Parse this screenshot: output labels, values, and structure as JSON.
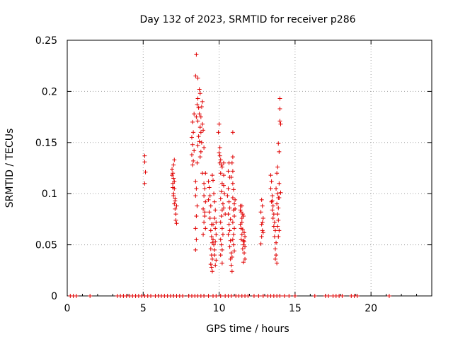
{
  "chart_data": {
    "type": "scatter",
    "title": "Day 132 of 2023, SRMTID for receiver p286",
    "xlabel": "GPS time / hours",
    "ylabel": "SRMTID / TECUs",
    "xlim": [
      0,
      24
    ],
    "ylim": [
      0,
      0.25
    ],
    "xticks": [
      0,
      5,
      10,
      15,
      20
    ],
    "xtick_labels": [
      "0",
      "5",
      "10",
      "15",
      "20"
    ],
    "yticks": [
      0,
      0.05,
      0.1,
      0.15,
      0.2,
      0.25
    ],
    "ytick_labels": [
      "0",
      "0.05",
      "0.1",
      "0.15",
      "0.2",
      "0.25"
    ],
    "grid": true,
    "legend": "none",
    "marker": "+",
    "color": "#e00000",
    "series": [
      {
        "name": "SRMTID",
        "points": [
          [
            0.2,
            0
          ],
          [
            0.4,
            0
          ],
          [
            0.6,
            0
          ],
          [
            1.5,
            0
          ],
          [
            3.3,
            0
          ],
          [
            3.5,
            0
          ],
          [
            3.7,
            0
          ],
          [
            3.9,
            0
          ],
          [
            4.1,
            0
          ],
          [
            4.3,
            0
          ],
          [
            4.5,
            0
          ],
          [
            4.7,
            0
          ],
          [
            4.9,
            0
          ],
          [
            5.1,
            0
          ],
          [
            5.3,
            0
          ],
          [
            5.5,
            0
          ],
          [
            5.8,
            0
          ],
          [
            6.0,
            0
          ],
          [
            6.2,
            0
          ],
          [
            6.4,
            0
          ],
          [
            6.6,
            0
          ],
          [
            6.8,
            0
          ],
          [
            7.0,
            0
          ],
          [
            7.2,
            0
          ],
          [
            7.4,
            0
          ],
          [
            7.6,
            0
          ],
          [
            8.0,
            0
          ],
          [
            8.2,
            0
          ],
          [
            8.4,
            0
          ],
          [
            8.6,
            0
          ],
          [
            8.8,
            0
          ],
          [
            9.0,
            0
          ],
          [
            9.3,
            0
          ],
          [
            9.6,
            0
          ],
          [
            9.8,
            0
          ],
          [
            10.1,
            0
          ],
          [
            10.4,
            0
          ],
          [
            10.6,
            0
          ],
          [
            10.8,
            0
          ],
          [
            11.1,
            0
          ],
          [
            11.3,
            0
          ],
          [
            11.5,
            0
          ],
          [
            11.7,
            0
          ],
          [
            11.9,
            0
          ],
          [
            12.3,
            0
          ],
          [
            12.6,
            0
          ],
          [
            12.9,
            0
          ],
          [
            13.2,
            0
          ],
          [
            13.4,
            0
          ],
          [
            13.6,
            0
          ],
          [
            13.8,
            0
          ],
          [
            14.0,
            0
          ],
          [
            14.3,
            0
          ],
          [
            14.6,
            0
          ],
          [
            15.0,
            0
          ],
          [
            16.3,
            0
          ],
          [
            17.0,
            0
          ],
          [
            17.2,
            0
          ],
          [
            17.5,
            0
          ],
          [
            17.7,
            0
          ],
          [
            17.9,
            0
          ],
          [
            18.1,
            0
          ],
          [
            18.7,
            0
          ],
          [
            18.9,
            0
          ],
          [
            19.1,
            0
          ],
          [
            21.2,
            0
          ],
          [
            5.1,
            0.137
          ],
          [
            5.1,
            0.131
          ],
          [
            5.15,
            0.121
          ],
          [
            5.1,
            0.11
          ],
          [
            6.9,
            0.124
          ],
          [
            6.95,
            0.12
          ],
          [
            7.0,
            0.115
          ],
          [
            6.95,
            0.11
          ],
          [
            7.05,
            0.105
          ],
          [
            7.0,
            0.1
          ],
          [
            7.1,
            0.095
          ],
          [
            7.05,
            0.09
          ],
          [
            7.1,
            0.085
          ],
          [
            7.15,
            0.08
          ],
          [
            7.0,
            0.128
          ],
          [
            7.05,
            0.133
          ],
          [
            6.9,
            0.118
          ],
          [
            7.0,
            0.098
          ],
          [
            7.1,
            0.093
          ],
          [
            7.2,
            0.088
          ],
          [
            7.15,
            0.074
          ],
          [
            7.2,
            0.071
          ],
          [
            6.95,
            0.106
          ],
          [
            7.05,
            0.112
          ],
          [
            8.5,
            0.236
          ],
          [
            8.45,
            0.215
          ],
          [
            8.6,
            0.213
          ],
          [
            8.6,
            0.193
          ],
          [
            8.7,
            0.202
          ],
          [
            8.75,
            0.198
          ],
          [
            8.55,
            0.187
          ],
          [
            8.65,
            0.184
          ],
          [
            8.7,
            0.178
          ],
          [
            8.5,
            0.175
          ],
          [
            8.6,
            0.171
          ],
          [
            8.75,
            0.165
          ],
          [
            8.8,
            0.16
          ],
          [
            8.65,
            0.156
          ],
          [
            8.7,
            0.151
          ],
          [
            8.6,
            0.147
          ],
          [
            8.8,
            0.141
          ],
          [
            8.75,
            0.136
          ],
          [
            8.55,
            0.13
          ],
          [
            8.25,
            0.17
          ],
          [
            8.3,
            0.16
          ],
          [
            8.2,
            0.155
          ],
          [
            8.25,
            0.148
          ],
          [
            8.35,
            0.142
          ],
          [
            8.2,
            0.138
          ],
          [
            8.3,
            0.132
          ],
          [
            8.25,
            0.128
          ],
          [
            8.35,
            0.178
          ],
          [
            8.45,
            0.112
          ],
          [
            8.5,
            0.105
          ],
          [
            8.45,
            0.098
          ],
          [
            8.55,
            0.088
          ],
          [
            8.5,
            0.078
          ],
          [
            8.45,
            0.066
          ],
          [
            8.5,
            0.055
          ],
          [
            8.45,
            0.045
          ],
          [
            8.9,
            0.19
          ],
          [
            8.85,
            0.185
          ],
          [
            8.8,
            0.175
          ],
          [
            8.9,
            0.168
          ],
          [
            8.95,
            0.162
          ],
          [
            8.85,
            0.15
          ],
          [
            9.0,
            0.145
          ],
          [
            8.9,
            0.12
          ],
          [
            9.0,
            0.11
          ],
          [
            9.05,
            0.105
          ],
          [
            9.1,
            0.12
          ],
          [
            9.0,
            0.098
          ],
          [
            9.1,
            0.092
          ],
          [
            8.95,
            0.085
          ],
          [
            9.05,
            0.078
          ],
          [
            9.0,
            0.072
          ],
          [
            9.1,
            0.066
          ],
          [
            8.95,
            0.06
          ],
          [
            9.05,
            0.082
          ],
          [
            9.3,
            0.112
          ],
          [
            9.35,
            0.106
          ],
          [
            9.4,
            0.098
          ],
          [
            9.3,
            0.094
          ],
          [
            9.45,
            0.088
          ],
          [
            9.35,
            0.082
          ],
          [
            9.4,
            0.076
          ],
          [
            9.5,
            0.07
          ],
          [
            9.45,
            0.064
          ],
          [
            9.5,
            0.058
          ],
          [
            9.55,
            0.052
          ],
          [
            9.45,
            0.046
          ],
          [
            9.5,
            0.04
          ],
          [
            9.55,
            0.036
          ],
          [
            9.45,
            0.031
          ],
          [
            9.5,
            0.028
          ],
          [
            9.55,
            0.024
          ],
          [
            9.6,
            0.055
          ],
          [
            9.65,
            0.05
          ],
          [
            9.7,
            0.045
          ],
          [
            9.6,
            0.07
          ],
          [
            9.55,
            0.118
          ],
          [
            9.6,
            0.113
          ],
          [
            9.65,
            0.1
          ],
          [
            9.7,
            0.092
          ],
          [
            9.75,
            0.084
          ],
          [
            9.7,
            0.076
          ],
          [
            9.8,
            0.072
          ],
          [
            9.75,
            0.066
          ],
          [
            9.8,
            0.06
          ],
          [
            9.75,
            0.053
          ],
          [
            9.7,
            0.04
          ],
          [
            9.8,
            0.035
          ],
          [
            9.75,
            0.03
          ],
          [
            10.0,
            0.168
          ],
          [
            9.95,
            0.16
          ],
          [
            10.05,
            0.145
          ],
          [
            10.0,
            0.14
          ],
          [
            10.1,
            0.133
          ],
          [
            10.05,
            0.13
          ],
          [
            10.15,
            0.128
          ],
          [
            10.2,
            0.126
          ],
          [
            10.3,
            0.13
          ],
          [
            10.1,
            0.12
          ],
          [
            10.2,
            0.11
          ],
          [
            10.15,
            0.102
          ],
          [
            10.1,
            0.095
          ],
          [
            10.25,
            0.09
          ],
          [
            10.2,
            0.084
          ],
          [
            10.15,
            0.078
          ],
          [
            10.1,
            0.072
          ],
          [
            10.2,
            0.066
          ],
          [
            10.25,
            0.06
          ],
          [
            10.1,
            0.055
          ],
          [
            10.15,
            0.05
          ],
          [
            10.2,
            0.045
          ],
          [
            10.1,
            0.04
          ],
          [
            10.2,
            0.032
          ],
          [
            10.3,
            0.108
          ],
          [
            10.35,
            0.1
          ],
          [
            10.3,
            0.086
          ],
          [
            10.4,
            0.08
          ],
          [
            10.05,
            0.137
          ],
          [
            10.3,
            0.118
          ],
          [
            10.6,
            0.105
          ],
          [
            10.55,
            0.098
          ],
          [
            10.65,
            0.092
          ],
          [
            10.7,
            0.086
          ],
          [
            10.6,
            0.08
          ],
          [
            10.75,
            0.075
          ],
          [
            10.65,
            0.07
          ],
          [
            10.7,
            0.064
          ],
          [
            10.6,
            0.06
          ],
          [
            10.75,
            0.054
          ],
          [
            10.7,
            0.048
          ],
          [
            10.8,
            0.042
          ],
          [
            10.75,
            0.036
          ],
          [
            10.8,
            0.03
          ],
          [
            10.85,
            0.024
          ],
          [
            10.9,
            0.11
          ],
          [
            10.95,
            0.104
          ],
          [
            10.9,
            0.096
          ],
          [
            11.0,
            0.09
          ],
          [
            10.95,
            0.084
          ],
          [
            11.0,
            0.078
          ],
          [
            10.9,
            0.072
          ],
          [
            11.0,
            0.066
          ],
          [
            10.95,
            0.06
          ],
          [
            10.9,
            0.055
          ],
          [
            10.95,
            0.05
          ],
          [
            11.0,
            0.044
          ],
          [
            10.85,
            0.038
          ],
          [
            10.9,
            0.16
          ],
          [
            10.9,
            0.136
          ],
          [
            10.85,
            0.13
          ],
          [
            10.9,
            0.122
          ],
          [
            10.8,
            0.116
          ],
          [
            11.05,
            0.094
          ],
          [
            11.05,
            0.085
          ],
          [
            10.65,
            0.13
          ],
          [
            10.6,
            0.122
          ],
          [
            10.7,
            0.116
          ],
          [
            11.4,
            0.088
          ],
          [
            11.45,
            0.082
          ],
          [
            11.5,
            0.076
          ],
          [
            11.4,
            0.07
          ],
          [
            11.55,
            0.065
          ],
          [
            11.5,
            0.06
          ],
          [
            11.45,
            0.055
          ],
          [
            11.6,
            0.05
          ],
          [
            11.55,
            0.046
          ],
          [
            11.65,
            0.062
          ],
          [
            11.7,
            0.058
          ],
          [
            11.6,
            0.054
          ],
          [
            11.7,
            0.048
          ],
          [
            11.65,
            0.042
          ],
          [
            11.7,
            0.036
          ],
          [
            11.6,
            0.033
          ],
          [
            11.5,
            0.072
          ],
          [
            11.45,
            0.066
          ],
          [
            11.55,
            0.08
          ],
          [
            11.4,
            0.084
          ],
          [
            11.65,
            0.053
          ],
          [
            11.6,
            0.078
          ],
          [
            11.5,
            0.088
          ],
          [
            12.8,
            0.094
          ],
          [
            12.85,
            0.088
          ],
          [
            12.75,
            0.082
          ],
          [
            12.9,
            0.076
          ],
          [
            12.8,
            0.07
          ],
          [
            12.85,
            0.064
          ],
          [
            12.8,
            0.058
          ],
          [
            12.75,
            0.051
          ],
          [
            12.9,
            0.062
          ],
          [
            12.85,
            0.072
          ],
          [
            13.4,
            0.118
          ],
          [
            13.45,
            0.112
          ],
          [
            13.4,
            0.105
          ],
          [
            13.5,
            0.098
          ],
          [
            13.45,
            0.092
          ],
          [
            13.55,
            0.088
          ],
          [
            13.5,
            0.084
          ],
          [
            13.6,
            0.08
          ],
          [
            13.55,
            0.076
          ],
          [
            13.65,
            0.072
          ],
          [
            13.6,
            0.068
          ],
          [
            13.7,
            0.064
          ],
          [
            13.65,
            0.058
          ],
          [
            13.75,
            0.052
          ],
          [
            13.7,
            0.046
          ],
          [
            13.75,
            0.04
          ],
          [
            13.7,
            0.036
          ],
          [
            13.8,
            0.032
          ],
          [
            13.8,
            0.12
          ],
          [
            13.75,
            0.105
          ],
          [
            13.85,
            0.1
          ],
          [
            13.9,
            0.096
          ],
          [
            13.8,
            0.09
          ],
          [
            13.9,
            0.086
          ],
          [
            13.85,
            0.08
          ],
          [
            13.9,
            0.074
          ],
          [
            13.85,
            0.068
          ],
          [
            13.95,
            0.064
          ],
          [
            13.9,
            0.058
          ],
          [
            13.85,
            0.126
          ],
          [
            13.95,
            0.11
          ],
          [
            13.9,
            0.149
          ],
          [
            13.95,
            0.141
          ],
          [
            14.0,
            0.171
          ],
          [
            14.05,
            0.168
          ],
          [
            14.0,
            0.183
          ],
          [
            14.0,
            0.193
          ],
          [
            14.05,
            0.101
          ],
          [
            13.95,
            0.096
          ],
          [
            13.5,
            0.093
          ]
        ]
      }
    ]
  }
}
